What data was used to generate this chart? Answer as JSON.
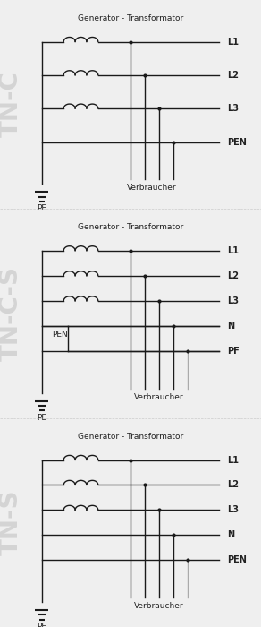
{
  "bg_color": "#efefef",
  "line_color": "#1a1a1a",
  "gray_line_color": "#aaaaaa",
  "label_color": "#222222",
  "side_label_color": "#d0d0d0",
  "title_text": "Generator - Transformator",
  "verbraucher_text": "Verbraucher",
  "pe_text": "PE",
  "diagrams": [
    {
      "name": "TN-C",
      "labels": [
        "L1",
        "L2",
        "L3",
        "PEN"
      ],
      "n_lines": 4,
      "has_pen_split": false,
      "pen_label": null,
      "consumer_colors": [
        "dark",
        "dark",
        "dark",
        "dark"
      ],
      "n_consumer": 4
    },
    {
      "name": "TN-C-S",
      "labels": [
        "L1",
        "L2",
        "L3",
        "N",
        "PF"
      ],
      "n_lines": 5,
      "has_pen_split": true,
      "pen_label": "PEN",
      "consumer_colors": [
        "dark",
        "dark",
        "dark",
        "dark",
        "light"
      ],
      "n_consumer": 5
    },
    {
      "name": "TN-S",
      "labels": [
        "L1",
        "L2",
        "L3",
        "N",
        "PEN"
      ],
      "n_lines": 5,
      "has_pen_split": false,
      "pen_label": null,
      "consumer_colors": [
        "dark",
        "dark",
        "dark",
        "dark",
        "light"
      ],
      "n_consumer": 5
    }
  ]
}
